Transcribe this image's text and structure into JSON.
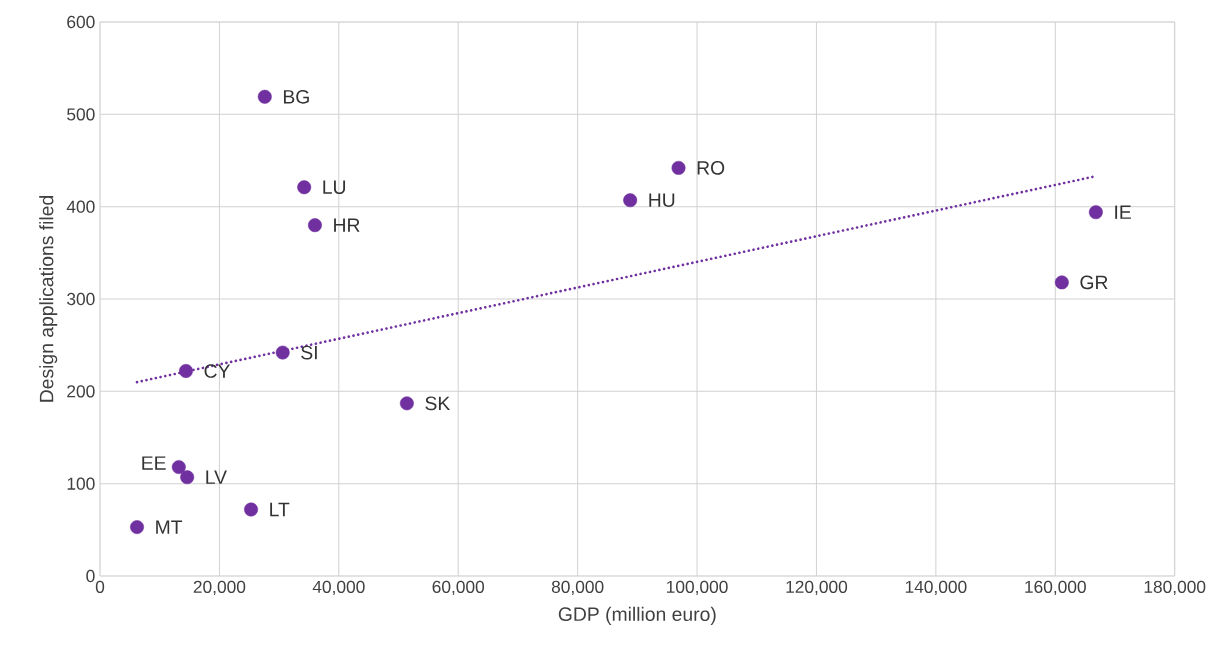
{
  "chart_data": {
    "type": "scatter",
    "xlabel": "GDP (million euro)",
    "ylabel": "Design applications filed",
    "xlim": [
      0,
      180000
    ],
    "ylim": [
      0,
      600
    ],
    "xticks": [
      0,
      {
        "value": 20000,
        "label": "20,000"
      },
      {
        "value": 40000,
        "label": "40,000"
      },
      {
        "value": 60000,
        "label": "60,000"
      },
      {
        "value": 80000,
        "label": "80,000"
      },
      {
        "value": 100000,
        "label": "100,000"
      },
      {
        "value": 120000,
        "label": "120,000"
      },
      {
        "value": 140000,
        "label": "140,000"
      },
      {
        "value": 160000,
        "label": "160,000"
      },
      {
        "value": 180000,
        "label": "180,000"
      }
    ],
    "yticks": [
      0,
      100,
      200,
      300,
      400,
      500,
      600
    ],
    "grid": true,
    "marker": "circle",
    "series": [
      {
        "color": "#7030a0",
        "x": [
          27600,
          34200,
          36000,
          96900,
          88800,
          166800,
          161100,
          30600,
          14400,
          51400,
          13200,
          14600,
          25300,
          6200
        ],
        "values": [
          519,
          421,
          380,
          442,
          407,
          394,
          318,
          242,
          222,
          187,
          118,
          107,
          72,
          53
        ]
      },
      {
        "type": "line",
        "color": "#7030a0",
        "line_style": "dotted",
        "marker": "none",
        "x": [
          6200,
          166800
        ],
        "values": [
          210,
          433
        ]
      }
    ],
    "annotations": [
      {
        "text": "BG",
        "x": 27600,
        "y": 519
      },
      {
        "text": "LU",
        "x": 34200,
        "y": 421
      },
      {
        "text": "HR",
        "x": 36000,
        "y": 380
      },
      {
        "text": "RO",
        "x": 96900,
        "y": 442
      },
      {
        "text": "HU",
        "x": 88800,
        "y": 407
      },
      {
        "text": "IE",
        "x": 166800,
        "y": 394
      },
      {
        "text": "GR",
        "x": 161100,
        "y": 318
      },
      {
        "text": "SI",
        "x": 30600,
        "y": 242
      },
      {
        "text": "CY",
        "x": 14400,
        "y": 222
      },
      {
        "text": "SK",
        "x": 51400,
        "y": 187
      },
      {
        "text": "EE",
        "x": 13200,
        "y": 118
      },
      {
        "text": "LV",
        "x": 14600,
        "y": 107
      },
      {
        "text": "LT",
        "x": 25300,
        "y": 72
      },
      {
        "text": "MT",
        "x": 6200,
        "y": 53
      }
    ]
  }
}
